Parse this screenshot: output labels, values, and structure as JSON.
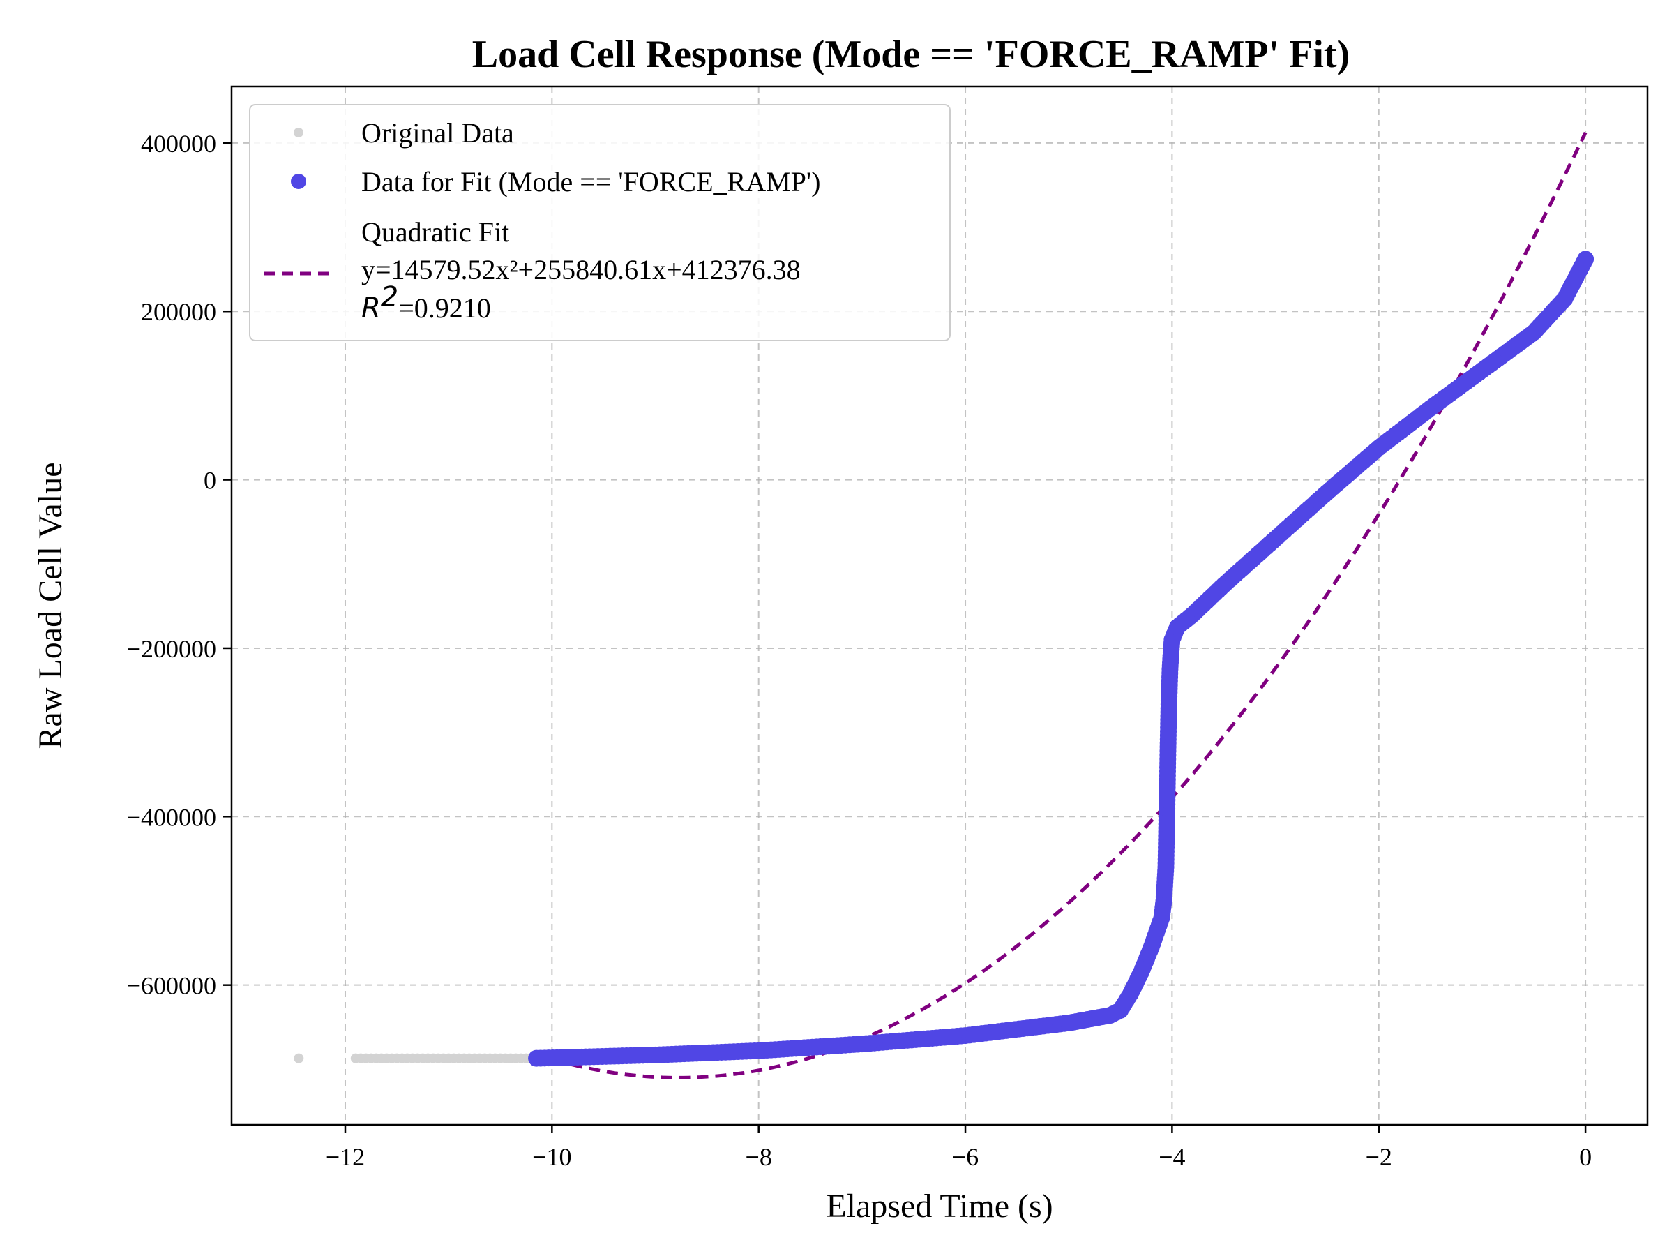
{
  "chart_data": {
    "type": "scatter",
    "title": "Load Cell Response (Mode == 'FORCE_RAMP' Fit)",
    "xlabel": "Elapsed Time (s)",
    "ylabel": "Raw Load Cell Value",
    "xlim": [
      -13.1,
      0.6
    ],
    "ylim": [
      -766000,
      467000
    ],
    "x_ticks": [
      -12,
      -10,
      -8,
      -6,
      -4,
      -2,
      0
    ],
    "x_tick_labels": [
      "−12",
      "−10",
      "−8",
      "−6",
      "−4",
      "−2",
      "0"
    ],
    "y_ticks": [
      400000,
      200000,
      0,
      -200000,
      -400000,
      -600000
    ],
    "y_tick_labels": [
      "400000",
      "200000",
      "0",
      "−200000",
      "−400000",
      "−600000"
    ],
    "grid": true,
    "legend_position": "top-left",
    "colors": {
      "original": "#d3d3d3",
      "fit_data": "#5046e5",
      "fit_line": "#800080"
    },
    "series": [
      {
        "name": "Original Data",
        "style": "small-points",
        "points": [
          [
            -12.45,
            -687000
          ],
          [
            -11.9,
            -687000
          ],
          [
            -11.6,
            -687000
          ],
          [
            -11.3,
            -687000
          ],
          [
            -11.0,
            -687000
          ],
          [
            -10.7,
            -687000
          ],
          [
            -10.4,
            -687000
          ],
          [
            -10.15,
            -687000
          ]
        ]
      },
      {
        "name": "Data for Fit (Mode == 'FORCE_RAMP')",
        "style": "large-points",
        "points": [
          [
            -10.15,
            -687000
          ],
          [
            -9.0,
            -683000
          ],
          [
            -8.0,
            -678000
          ],
          [
            -7.0,
            -670000
          ],
          [
            -6.0,
            -660000
          ],
          [
            -5.0,
            -645000
          ],
          [
            -4.6,
            -636000
          ],
          [
            -4.5,
            -630000
          ],
          [
            -4.4,
            -610000
          ],
          [
            -4.3,
            -585000
          ],
          [
            -4.2,
            -555000
          ],
          [
            -4.1,
            -520000
          ],
          [
            -4.08,
            -500000
          ],
          [
            -4.06,
            -460000
          ],
          [
            -4.05,
            -395000
          ],
          [
            -4.04,
            -322000
          ],
          [
            -4.03,
            -262000
          ],
          [
            -4.02,
            -225000
          ],
          [
            -4.01,
            -205000
          ],
          [
            -4.0,
            -190000
          ],
          [
            -3.95,
            -175000
          ],
          [
            -3.8,
            -160000
          ],
          [
            -3.5,
            -125000
          ],
          [
            -3.0,
            -70000
          ],
          [
            -2.5,
            -15000
          ],
          [
            -2.0,
            38000
          ],
          [
            -1.5,
            85000
          ],
          [
            -1.0,
            130000
          ],
          [
            -0.5,
            175000
          ],
          [
            -0.2,
            215000
          ],
          [
            0.0,
            262000
          ]
        ]
      }
    ],
    "fit": {
      "name": "Quadratic Fit",
      "equation": "y=14579.52x²+255840.61x+412376.38",
      "coefficients": {
        "a": 14579.52,
        "b": 255840.61,
        "c": 412376.38
      },
      "r2_label": "R",
      "r2_exponent": "2",
      "r2_value": "=0.9210",
      "x_range": [
        -10.15,
        0.0
      ]
    }
  }
}
